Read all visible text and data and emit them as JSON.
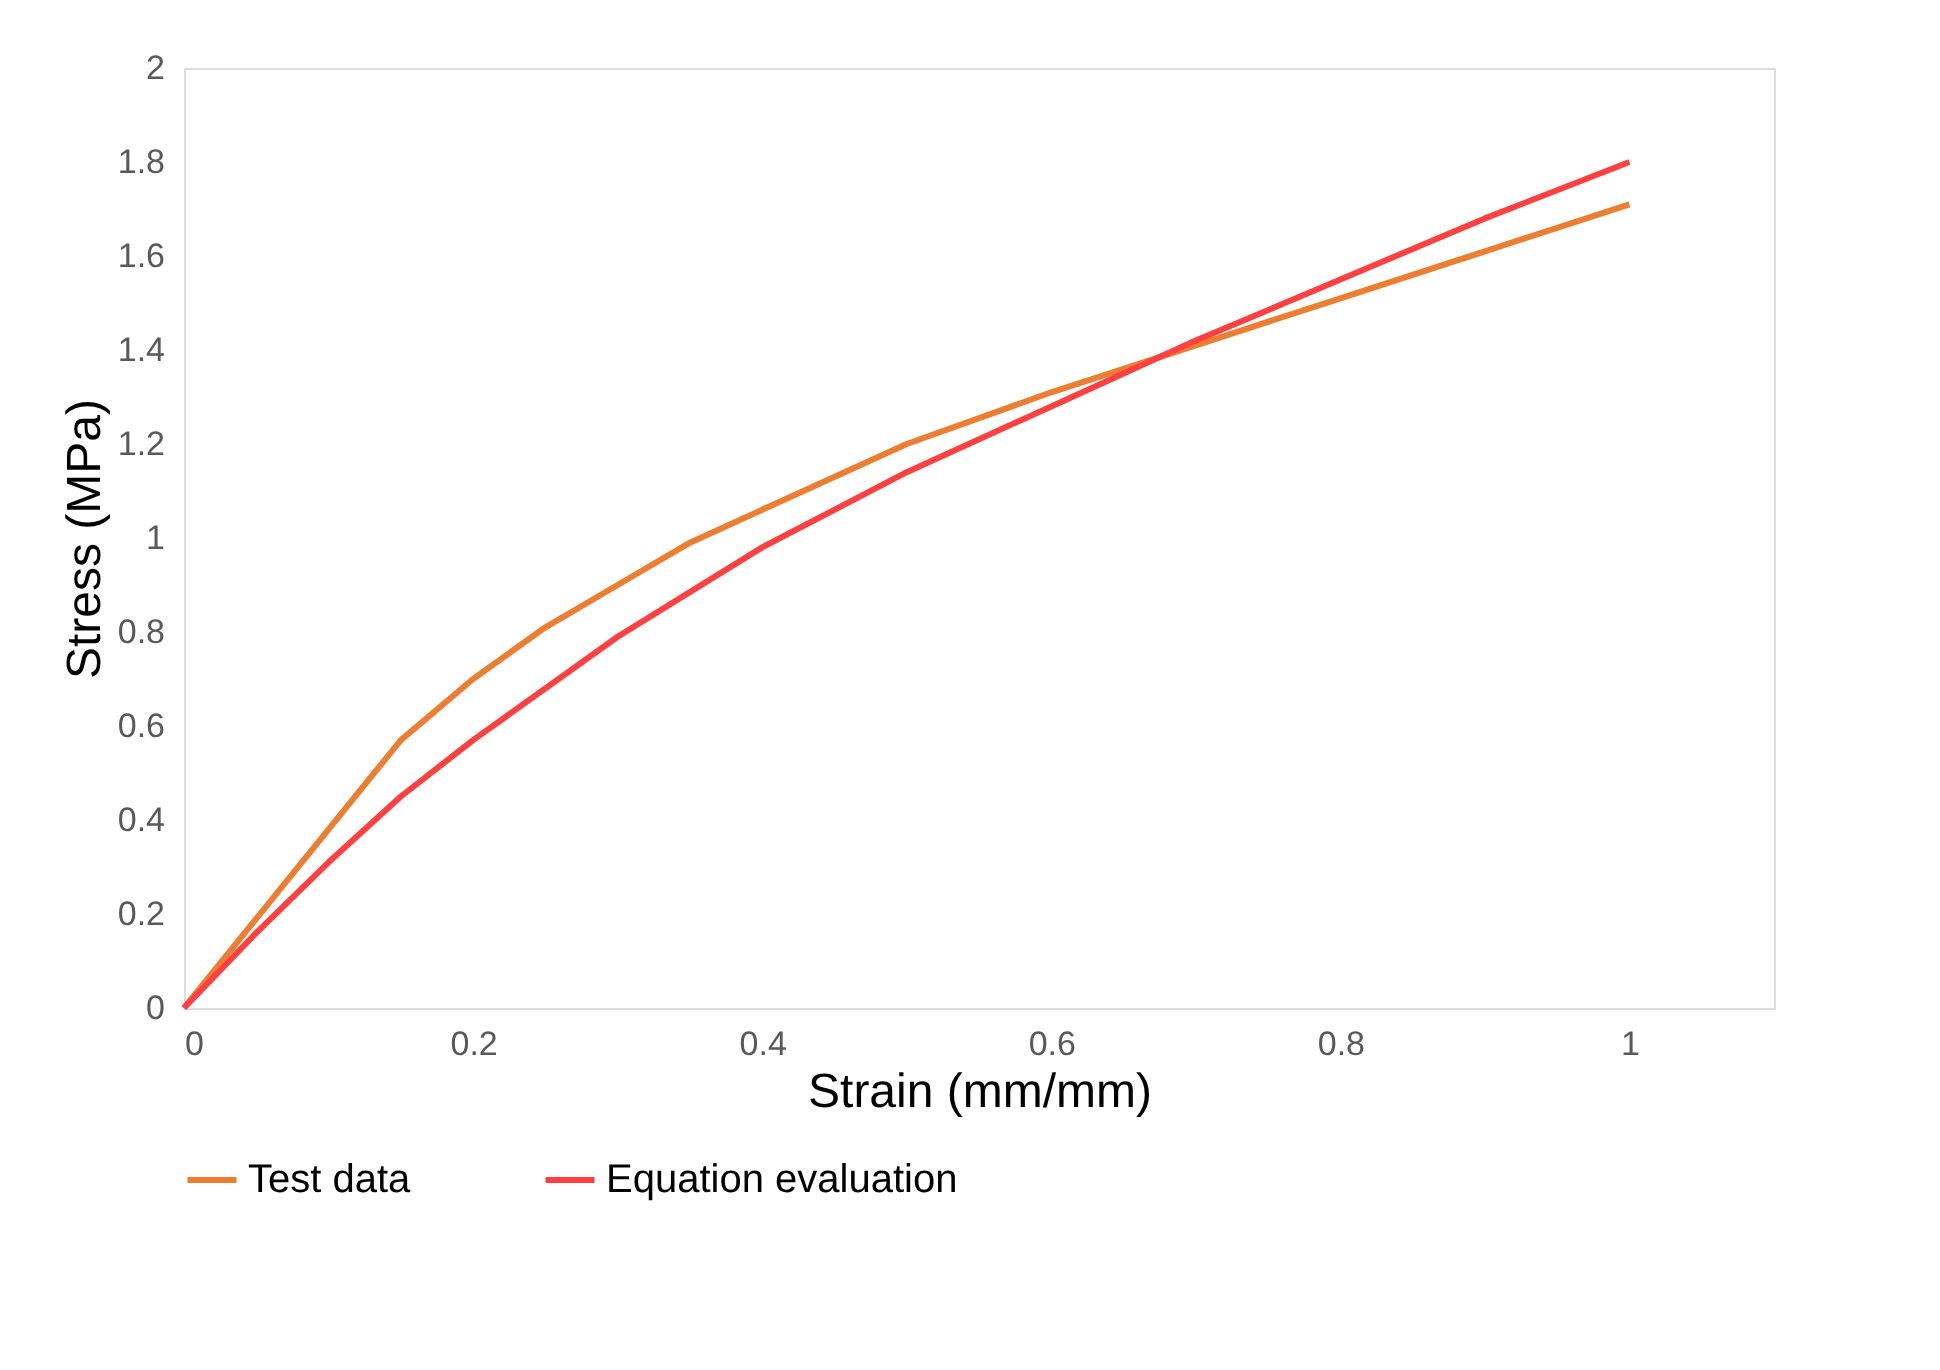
{
  "chart_data": {
    "type": "line",
    "xlabel": "Strain (mm/mm)",
    "ylabel": "Stress (MPa)",
    "xlim": [
      0,
      1.1
    ],
    "xticks": [
      0,
      0.2,
      0.4,
      0.6,
      0.8,
      1
    ],
    "ylim": [
      0,
      2
    ],
    "yticks": [
      0,
      0.2,
      0.4,
      0.6,
      0.8,
      1,
      1.2,
      1.4,
      1.6,
      1.8,
      2
    ],
    "grid": false,
    "legend": "bottom",
    "marker": "none",
    "line_style": "solid",
    "series": [
      {
        "name": "Test data",
        "color": "#ed7d31",
        "x": [
          0,
          0.05,
          0.1,
          0.15,
          0.2,
          0.25,
          0.3,
          0.35,
          0.4,
          0.5,
          0.6,
          0.7,
          0.8,
          0.9,
          1.0
        ],
        "values": [
          0,
          0.19,
          0.38,
          0.57,
          0.7,
          0.81,
          0.9,
          0.99,
          1.06,
          1.2,
          1.31,
          1.41,
          1.51,
          1.61,
          1.71
        ]
      },
      {
        "name": "Equation evaluation",
        "color": "#ff4040",
        "x": [
          0,
          0.05,
          0.1,
          0.15,
          0.2,
          0.3,
          0.4,
          0.5,
          0.6,
          0.7,
          0.8,
          0.9,
          1.0
        ],
        "values": [
          0,
          0.16,
          0.31,
          0.45,
          0.57,
          0.79,
          0.98,
          1.14,
          1.28,
          1.42,
          1.55,
          1.68,
          1.8
        ]
      }
    ]
  }
}
